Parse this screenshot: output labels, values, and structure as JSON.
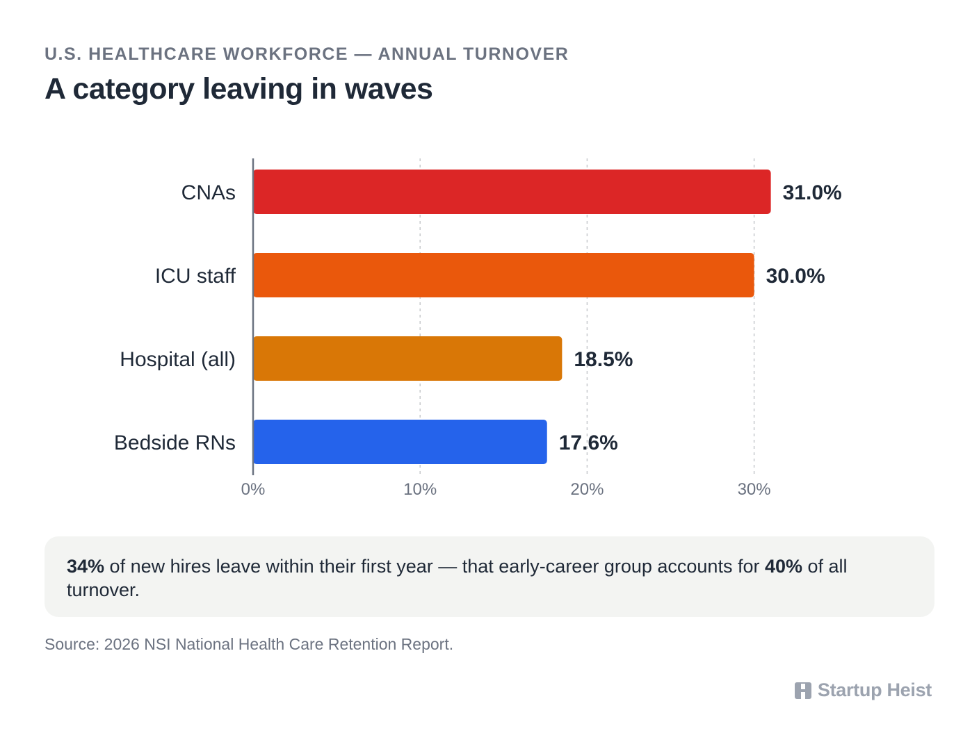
{
  "header": {
    "kicker": "U.S. HEALTHCARE WORKFORCE — ANNUAL TURNOVER",
    "title": "A category leaving in waves"
  },
  "chart_data": {
    "type": "bar",
    "orientation": "horizontal",
    "categories": [
      "CNAs",
      "ICU staff",
      "Hospital (all)",
      "Bedside RNs"
    ],
    "values": [
      31.0,
      30.0,
      18.5,
      17.6
    ],
    "value_labels": [
      "31.0%",
      "30.0%",
      "18.5%",
      "17.6%"
    ],
    "colors": [
      "#dc2626",
      "#ea580c",
      "#d97706",
      "#2563eb"
    ],
    "xlim": [
      0,
      35
    ],
    "xticks": [
      0,
      10,
      20,
      30
    ],
    "xtick_labels": [
      "0%",
      "10%",
      "20%",
      "30%"
    ],
    "grid": "vertical dashed",
    "legend": "none"
  },
  "callout": {
    "highlight_1": "34%",
    "text_1": " of new hires leave within their first year — that early-career group accounts for ",
    "highlight_2": "40%",
    "text_2": " of all turnover."
  },
  "source": "Source: 2026 NSI National Health Care Retention Report.",
  "brand": {
    "name": "Startup Heist",
    "icon": "building-icon"
  }
}
